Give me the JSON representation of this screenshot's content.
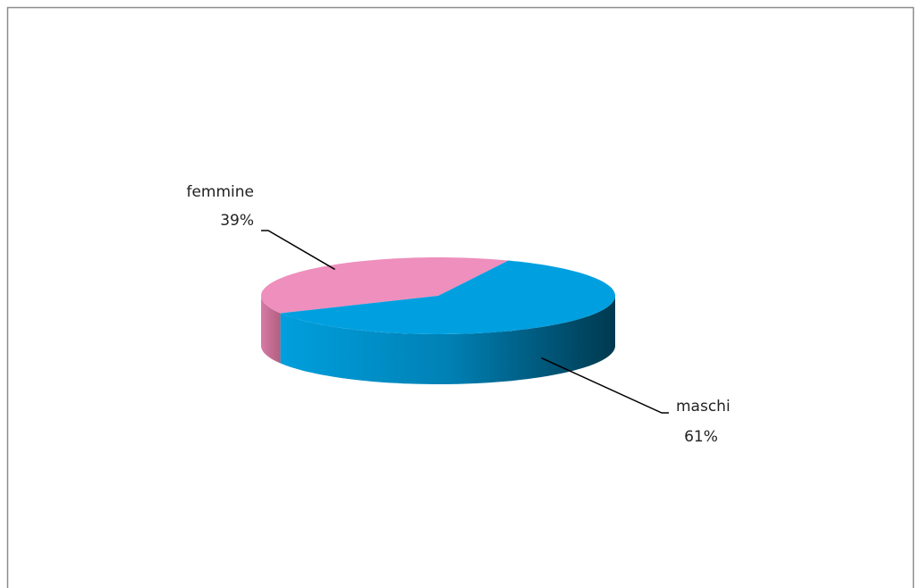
{
  "chart_data": {
    "type": "pie",
    "categories": [
      "femmine",
      "maschi"
    ],
    "values": [
      39,
      61
    ],
    "value_labels": [
      "39%",
      "61%"
    ],
    "colors": [
      "#ee8fbd",
      "#00a0e0"
    ]
  }
}
